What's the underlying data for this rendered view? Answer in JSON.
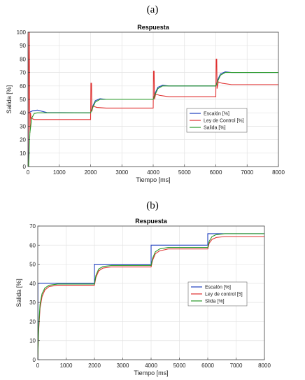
{
  "panels": [
    {
      "label": "(a)"
    },
    {
      "label": "(b)"
    }
  ],
  "chart_data": [
    {
      "type": "line",
      "title": "Respuesta",
      "xlabel": "Tiempo [ms]",
      "ylabel": "Salida [%]",
      "xlim": [
        0,
        8000
      ],
      "ylim": [
        0,
        100
      ],
      "xticks": [
        0,
        1000,
        2000,
        3000,
        4000,
        5000,
        6000,
        7000,
        8000
      ],
      "yticks": [
        0,
        10,
        20,
        30,
        40,
        50,
        60,
        70,
        80,
        90,
        100
      ],
      "grid": true,
      "legend_position": "center-right",
      "series": [
        {
          "name": "Escalón [%]",
          "color": "#1f3fbf",
          "x": [
            0,
            10,
            10,
            150,
            300,
            600,
            2000,
            2000,
            2050,
            2150,
            2300,
            2500,
            4000,
            4000,
            4050,
            4150,
            4300,
            4500,
            6000,
            6000,
            6050,
            6150,
            6300,
            6500,
            8000
          ],
          "y": [
            0,
            0,
            40,
            41.5,
            42,
            40.2,
            40,
            40,
            44,
            49,
            50.5,
            50,
            50,
            50,
            54,
            59,
            60.5,
            60,
            60,
            60,
            64,
            69,
            70.5,
            70,
            70
          ]
        },
        {
          "name": "Ley de Control [%]",
          "color": "#e03030",
          "x": [
            0,
            30,
            40,
            60,
            80,
            100,
            200,
            400,
            2000,
            2010,
            2030,
            2040,
            2080,
            2200,
            2500,
            4000,
            4010,
            4030,
            4040,
            4080,
            4200,
            4500,
            6000,
            6010,
            6030,
            6040,
            6080,
            6200,
            6500,
            8000
          ],
          "y": [
            0,
            100,
            100,
            25,
            40,
            36,
            35,
            35,
            35,
            62,
            62,
            41,
            45,
            44,
            43.5,
            43.5,
            71,
            71,
            50,
            54,
            53,
            52,
            52,
            80,
            80,
            58,
            63,
            62,
            61,
            61
          ]
        },
        {
          "name": "Salida [%]",
          "color": "#2a9a2a",
          "x": [
            0,
            20,
            60,
            120,
            200,
            300,
            500,
            2000,
            2000,
            2050,
            2150,
            2300,
            2500,
            4000,
            4000,
            4050,
            4150,
            4300,
            4500,
            6000,
            6000,
            6050,
            6150,
            6300,
            6500,
            8000
          ],
          "y": [
            0,
            0,
            25,
            36,
            39.5,
            40,
            40,
            40,
            40,
            43,
            48,
            50,
            50,
            50,
            50,
            53,
            58,
            60,
            60,
            60,
            60,
            63,
            68,
            70,
            70,
            70
          ]
        }
      ]
    },
    {
      "type": "line",
      "title": "Respuesta",
      "xlabel": "Tiempo [ms]",
      "ylabel": "Salida [%]",
      "xlim": [
        0,
        8000
      ],
      "ylim": [
        0,
        70
      ],
      "xticks": [
        0,
        1000,
        2000,
        3000,
        4000,
        5000,
        6000,
        7000,
        8000
      ],
      "yticks": [
        0,
        10,
        20,
        30,
        40,
        50,
        60,
        70
      ],
      "grid": true,
      "legend_position": "center-right",
      "series": [
        {
          "name": "Escalón [%]",
          "color": "#1f3fbf",
          "x": [
            0,
            5,
            5,
            2000,
            2000,
            4000,
            4000,
            6000,
            6000,
            8000
          ],
          "y": [
            0,
            0,
            40,
            40,
            50,
            50,
            60,
            60,
            66,
            66
          ]
        },
        {
          "name": "Ley de control [5]",
          "color": "#e03030",
          "x": [
            0,
            30,
            80,
            150,
            250,
            400,
            700,
            2000,
            2050,
            2150,
            2300,
            2600,
            4000,
            4050,
            4150,
            4300,
            4600,
            6000,
            6050,
            6150,
            6300,
            6600,
            8000
          ],
          "y": [
            0,
            15,
            27,
            33,
            36.5,
            38.3,
            39,
            39,
            43,
            46.5,
            48,
            48.6,
            48.6,
            52,
            55.5,
            57,
            58,
            58,
            61,
            63,
            64,
            64.5,
            64.5
          ]
        },
        {
          "name": "Slida [%]",
          "color": "#2a9a2a",
          "x": [
            0,
            30,
            80,
            150,
            250,
            400,
            700,
            2000,
            2050,
            2150,
            2300,
            2600,
            4000,
            4050,
            4150,
            4300,
            4600,
            6000,
            6050,
            6150,
            6300,
            6600,
            8000
          ],
          "y": [
            0,
            17,
            29,
            34.5,
            37.5,
            39,
            39.6,
            39.6,
            44,
            47.5,
            48.8,
            49.3,
            49.3,
            53,
            56.5,
            58,
            58.8,
            58.8,
            62,
            64.5,
            65.5,
            66,
            66
          ]
        }
      ]
    }
  ]
}
